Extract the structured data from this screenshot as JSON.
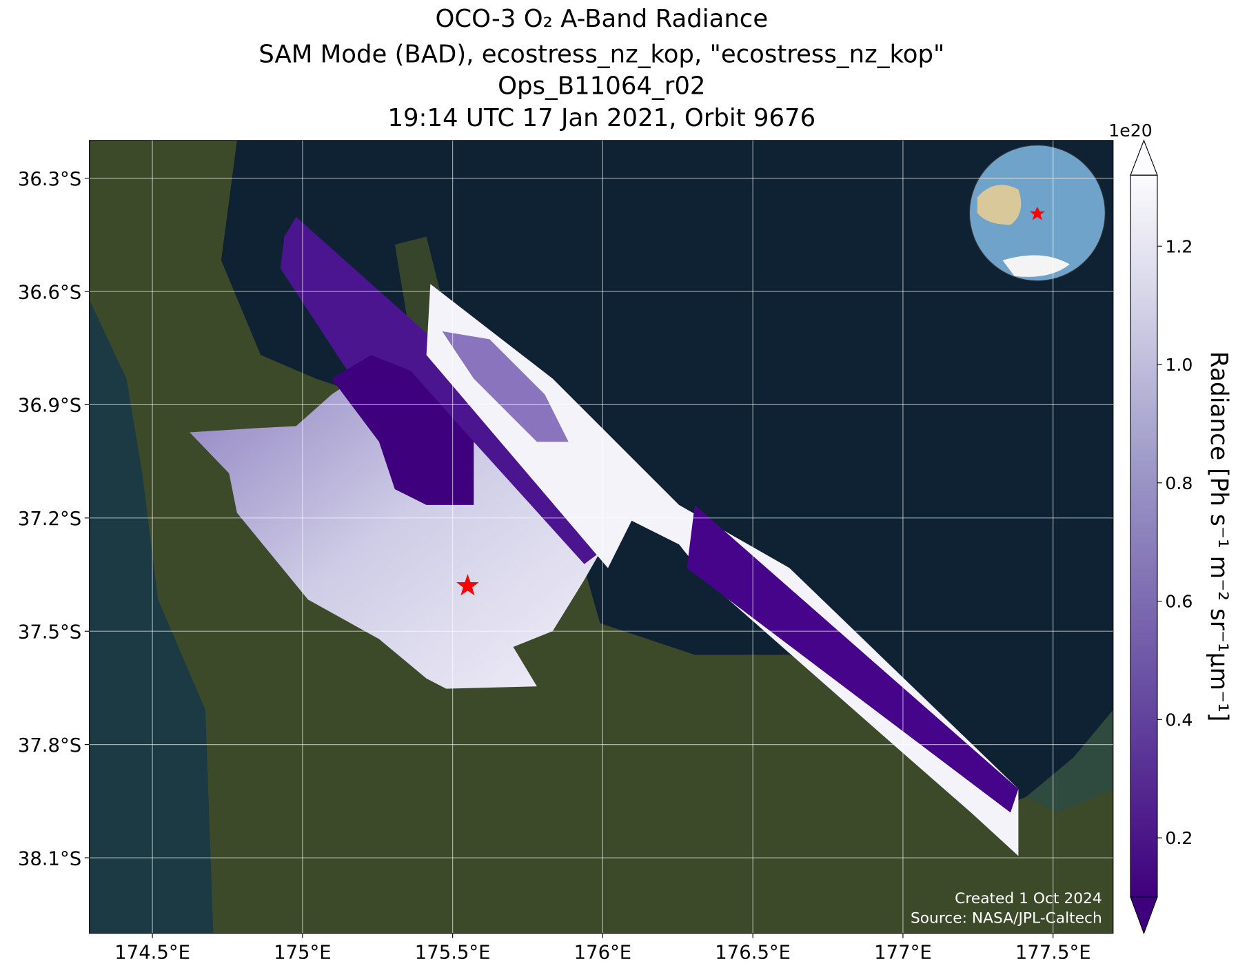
{
  "title": [
    "OCO-3 O₂ A-Band Radiance",
    "SAM Mode (BAD), ecostress_nz_kop, \"ecostress_nz_kop\"",
    "Ops_B11064_r02",
    "19:14 UTC 17 Jan 2021, Orbit 9676"
  ],
  "map": {
    "xlim": [
      174.29,
      177.7
    ],
    "ylim": [
      -38.3,
      -36.2
    ],
    "xticks": [
      {
        "value": 174.5,
        "label": "174.5°E"
      },
      {
        "value": 175,
        "label": "175°E"
      },
      {
        "value": 175.5,
        "label": "175.5°E"
      },
      {
        "value": 176,
        "label": "176°E"
      },
      {
        "value": 176.5,
        "label": "176.5°E"
      },
      {
        "value": 177,
        "label": "177°E"
      },
      {
        "value": 177.5,
        "label": "177.5°E"
      }
    ],
    "yticks": [
      {
        "value": -36.3,
        "label": "36.3°S"
      },
      {
        "value": -36.6,
        "label": "36.6°S"
      },
      {
        "value": -36.9,
        "label": "36.9°S"
      },
      {
        "value": -37.2,
        "label": "37.2°S"
      },
      {
        "value": -37.5,
        "label": "37.5°S"
      },
      {
        "value": -37.8,
        "label": "37.8°S"
      },
      {
        "value": -38.1,
        "label": "38.1°S"
      }
    ],
    "target": {
      "lon": 175.55,
      "lat": -37.38
    }
  },
  "colorbar": {
    "label": "Radiance [Ph s⁻¹ m⁻² sr⁻¹μm⁻¹]",
    "exponent": "1e20",
    "lim": [
      0.1,
      1.32
    ],
    "ticks": [
      0.2,
      0.4,
      0.6,
      0.8,
      {
        "value": 1,
        "label": "1.0"
      },
      1.2
    ]
  },
  "credits": [
    "Created 1 Oct 2024",
    "Source: NASA/JPL-Caltech"
  ]
}
